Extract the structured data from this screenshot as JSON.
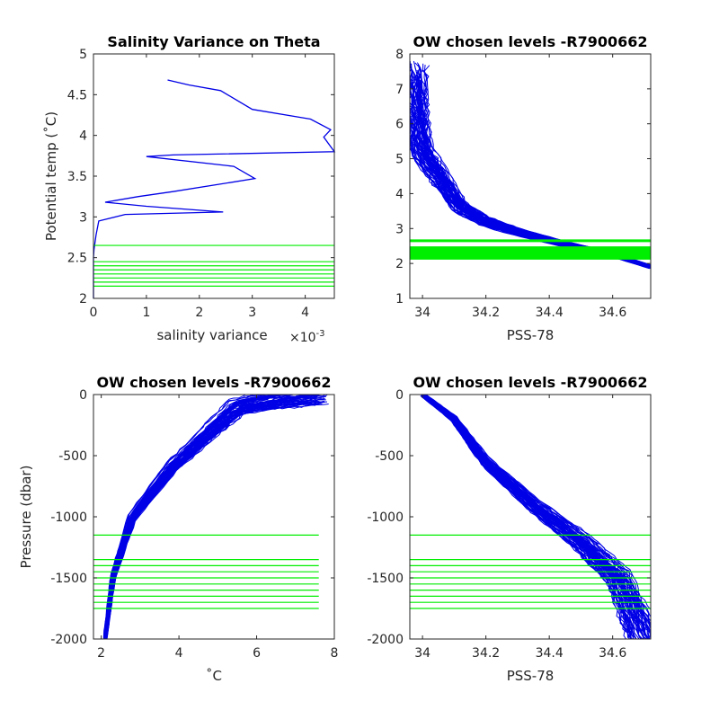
{
  "colors": {
    "profile": "#0000e6",
    "level": "#00ee00",
    "axis": "#262626"
  },
  "chart_data": [
    {
      "id": "p1",
      "type": "line",
      "title": "Salinity Variance on Theta",
      "xlabel": "salinity variance",
      "x_exponent": "×10",
      "x_exponent_power": "-3",
      "ylabel": "Potential temp (˚C)",
      "xlim": [
        0,
        4.55
      ],
      "ylim": [
        2,
        5
      ],
      "xticks": [
        0,
        1,
        2,
        3,
        4
      ],
      "yticks": [
        2,
        2.5,
        3,
        3.5,
        4,
        4.5,
        5
      ],
      "series": [
        {
          "values": [
            [
              1.4,
              4.68
            ],
            [
              1.8,
              4.62
            ],
            [
              2.4,
              4.55
            ],
            [
              3.0,
              4.32
            ],
            [
              4.1,
              4.2
            ],
            [
              4.48,
              4.07
            ],
            [
              4.35,
              3.98
            ],
            [
              4.55,
              3.8
            ],
            [
              1.5,
              3.76
            ],
            [
              1.0,
              3.74
            ],
            [
              2.65,
              3.62
            ],
            [
              3.05,
              3.47
            ],
            [
              1.5,
              3.31
            ],
            [
              0.85,
              3.25
            ],
            [
              0.22,
              3.18
            ],
            [
              1.0,
              3.13
            ],
            [
              2.45,
              3.06
            ],
            [
              0.6,
              3.03
            ],
            [
              0.1,
              2.95
            ],
            [
              0.05,
              2.78
            ],
            [
              0.01,
              2.6
            ],
            [
              0.0,
              2.5
            ],
            [
              0.0,
              2.0
            ]
          ]
        }
      ],
      "levels": [
        2.65,
        2.45,
        2.4,
        2.35,
        2.3,
        2.25,
        2.2,
        2.15
      ]
    },
    {
      "id": "p2",
      "type": "line",
      "title": "OW chosen levels -R7900662",
      "xlabel": "PSS-78",
      "ylabel": "",
      "xlim": [
        33.96,
        34.72
      ],
      "ylim": [
        1,
        8
      ],
      "xticks": [
        34,
        34.2,
        34.4,
        34.6
      ],
      "xtick_labels": [
        "34",
        "34.2",
        "34.4",
        "34.6"
      ],
      "yticks": [
        1,
        2,
        3,
        4,
        5,
        6,
        7,
        8
      ],
      "profile_count": 60,
      "profile_band": [
        [
          34.72,
          1.9
        ],
        [
          34.6,
          2.25
        ],
        [
          34.45,
          2.55
        ],
        [
          34.3,
          2.9
        ],
        [
          34.2,
          3.2
        ],
        [
          34.12,
          3.6
        ],
        [
          34.06,
          4.4
        ],
        [
          34.0,
          5.2
        ],
        [
          33.98,
          6.2
        ],
        [
          33.97,
          7.5
        ]
      ],
      "levels": [
        2.65,
        2.45,
        2.4,
        2.35,
        2.3,
        2.25,
        2.2,
        2.15
      ]
    },
    {
      "id": "p3",
      "type": "line",
      "title": "OW chosen levels -R7900662",
      "xlabel": "˚C",
      "ylabel": "Pressure (dbar)",
      "xlim": [
        1.8,
        8
      ],
      "ylim": [
        -2000,
        0
      ],
      "xticks": [
        2,
        4,
        6,
        8
      ],
      "yticks": [
        -2000,
        -1500,
        -1000,
        -500,
        0
      ],
      "profile_count": 60,
      "profile_band": [
        [
          2.1,
          -2000
        ],
        [
          2.3,
          -1500
        ],
        [
          2.8,
          -1000
        ],
        [
          3.8,
          -600
        ],
        [
          4.8,
          -300
        ],
        [
          5.5,
          -100
        ],
        [
          6.5,
          -40
        ],
        [
          7.5,
          0
        ]
      ],
      "levels": [
        -1150,
        -1350,
        -1400,
        -1450,
        -1500,
        -1550,
        -1600,
        -1650,
        -1700,
        -1750
      ]
    },
    {
      "id": "p4",
      "type": "line",
      "title": "OW chosen levels -R7900662",
      "xlabel": "PSS-78",
      "ylabel": "",
      "xlim": [
        33.96,
        34.72
      ],
      "ylim": [
        -2000,
        0
      ],
      "xticks": [
        34,
        34.2,
        34.4,
        34.6
      ],
      "xtick_labels": [
        "34",
        "34.2",
        "34.4",
        "34.6"
      ],
      "yticks": [
        -2000,
        -1500,
        -1000,
        -500,
        0
      ],
      "profile_count": 60,
      "profile_band": [
        [
          34.0,
          0
        ],
        [
          34.1,
          -200
        ],
        [
          34.2,
          -550
        ],
        [
          34.35,
          -900
        ],
        [
          34.5,
          -1200
        ],
        [
          34.62,
          -1500
        ],
        [
          34.7,
          -2000
        ]
      ],
      "levels": [
        -1150,
        -1350,
        -1400,
        -1450,
        -1500,
        -1550,
        -1600,
        -1650,
        -1700,
        -1750
      ]
    }
  ]
}
